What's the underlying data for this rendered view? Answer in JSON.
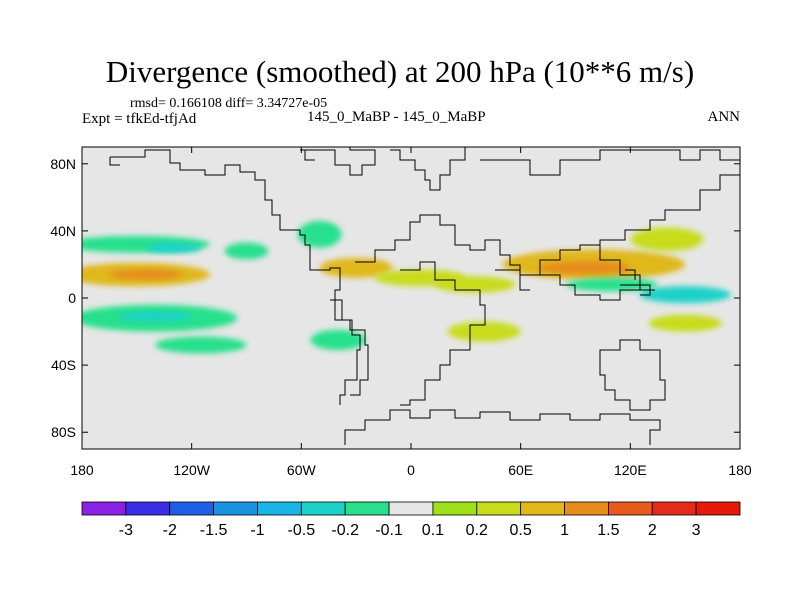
{
  "header": {
    "title": "Divergence (smoothed) at 200 hPa (10**6 m/s)",
    "stats": "rmsd= 0.166108 diff= 3.34727e-05",
    "expt": "Expt = tfkEd-tfjAd",
    "subtitle": "145_0_MaBP - 145_0_MaBP",
    "season": "ANN"
  },
  "chart_data": {
    "type": "heatmap",
    "title": "Divergence (smoothed) at 200 hPa (10**6 m/s)",
    "projection": "cylindrical equidistant",
    "xlim": [
      -180,
      180
    ],
    "ylim": [
      -90,
      90
    ],
    "x_ticks": [
      {
        "value": -180,
        "label": "180"
      },
      {
        "value": -120,
        "label": "120W"
      },
      {
        "value": -60,
        "label": "60W"
      },
      {
        "value": 0,
        "label": "0"
      },
      {
        "value": 60,
        "label": "60E"
      },
      {
        "value": 120,
        "label": "120E"
      },
      {
        "value": 180,
        "label": "180"
      }
    ],
    "y_ticks": [
      {
        "value": 80,
        "label": "80N"
      },
      {
        "value": 40,
        "label": "40N"
      },
      {
        "value": 0,
        "label": "0"
      },
      {
        "value": -40,
        "label": "40S"
      },
      {
        "value": -80,
        "label": "80S"
      }
    ],
    "background_color": "#e6e6e6",
    "colorbar": {
      "labels": [
        "-3",
        "-2",
        "-1.5",
        "-1",
        "-0.5",
        "-0.2",
        "-0.1",
        "0.1",
        "0.2",
        "0.5",
        "1",
        "1.5",
        "2",
        "3"
      ],
      "colors": [
        "#8a22e6",
        "#3b2ee6",
        "#1e5fe6",
        "#1a94e0",
        "#1ab4e6",
        "#1ad2c8",
        "#28e08c",
        "#e6e6e6",
        "#9ee01a",
        "#c8dc1a",
        "#e0b81a",
        "#e68c1a",
        "#e65a1a",
        "#e62a1a",
        "#e61a0a"
      ]
    },
    "fields": [
      {
        "lon": -150,
        "lat": 14,
        "rlon": 40,
        "rlat": 7,
        "value": 0.5
      },
      {
        "lon": -145,
        "lat": 14,
        "rlon": 20,
        "rlat": 3,
        "value": 1
      },
      {
        "lon": -150,
        "lat": 32,
        "rlon": 40,
        "rlat": 5,
        "value": -0.2
      },
      {
        "lon": -130,
        "lat": 30,
        "rlon": 15,
        "rlat": 3,
        "value": -0.5
      },
      {
        "lon": -140,
        "lat": -12,
        "rlon": 45,
        "rlat": 8,
        "value": -0.2
      },
      {
        "lon": -140,
        "lat": -11,
        "rlon": 20,
        "rlat": 3,
        "value": -0.5
      },
      {
        "lon": -115,
        "lat": -28,
        "rlon": 25,
        "rlat": 5,
        "value": -0.2
      },
      {
        "lon": -90,
        "lat": 28,
        "rlon": 12,
        "rlat": 5,
        "value": -0.2
      },
      {
        "lon": -50,
        "lat": 38,
        "rlon": 12,
        "rlat": 8,
        "value": -0.2
      },
      {
        "lon": -30,
        "lat": 18,
        "rlon": 20,
        "rlat": 6,
        "value": 0.5
      },
      {
        "lon": -40,
        "lat": -25,
        "rlon": 15,
        "rlat": 6,
        "value": -0.2
      },
      {
        "lon": 5,
        "lat": 12,
        "rlon": 25,
        "rlat": 5,
        "value": 0.2
      },
      {
        "lon": 40,
        "lat": -20,
        "rlon": 20,
        "rlat": 6,
        "value": 0.2
      },
      {
        "lon": 35,
        "lat": 8,
        "rlon": 22,
        "rlat": 5,
        "value": 0.2
      },
      {
        "lon": 100,
        "lat": 20,
        "rlon": 50,
        "rlat": 9,
        "value": 0.5
      },
      {
        "lon": 95,
        "lat": 18,
        "rlon": 25,
        "rlat": 4,
        "value": 1
      },
      {
        "lon": 140,
        "lat": 35,
        "rlon": 20,
        "rlat": 7,
        "value": 0.2
      },
      {
        "lon": 150,
        "lat": 2,
        "rlon": 25,
        "rlat": 5,
        "value": -0.5
      },
      {
        "lon": 110,
        "lat": 8,
        "rlon": 25,
        "rlat": 4,
        "value": -0.2
      },
      {
        "lon": 150,
        "lat": -15,
        "rlon": 20,
        "rlat": 5,
        "value": 0.2
      }
    ]
  }
}
